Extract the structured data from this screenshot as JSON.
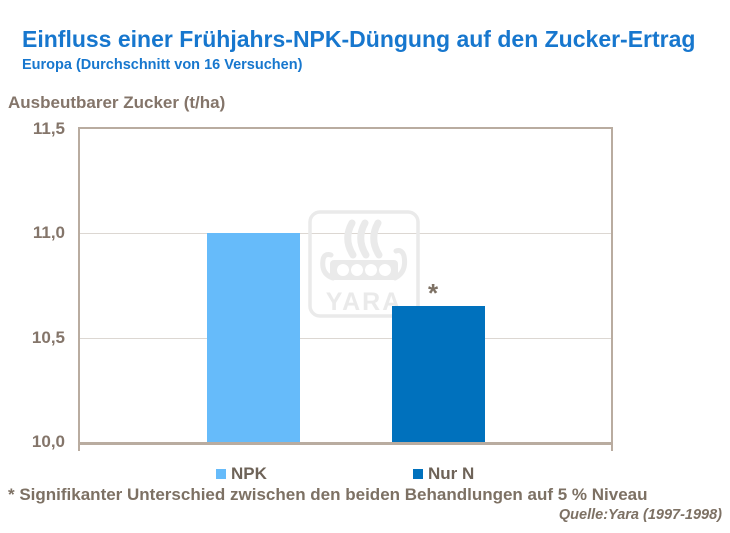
{
  "header": {
    "title": "Einfluss einer Frühjahrs-NPK-Düngung auf den Zucker-Ertrag",
    "subtitle": "Europa (Durchschnitt von 16 Versuchen)"
  },
  "chart_data": {
    "type": "bar",
    "title": "Einfluss einer Frühjahrs-NPK-Düngung auf den Zucker-Ertrag",
    "subtitle": "Europa (Durchschnitt von 16 Versuchen)",
    "ylabel": "Ausbeutbarer Zucker (t/ha)",
    "xlabel": "",
    "categories": [
      "NPK",
      "Nur N"
    ],
    "values": [
      11.0,
      10.65
    ],
    "bar_colors": [
      "#66BBFA",
      "#0071BD"
    ],
    "ylim": [
      10.0,
      11.5
    ],
    "yticks": [
      "11,5",
      "11,0",
      "10,5",
      "10,0"
    ],
    "ytick_values": [
      11.5,
      11.0,
      10.5,
      10.0
    ],
    "decimal_separator": ",",
    "grid": true,
    "legend_position": "bottom",
    "annotation": {
      "text": "*",
      "target_category": "Nur N"
    }
  },
  "legend": {
    "items": [
      {
        "label": "NPK",
        "color": "#66BBFA"
      },
      {
        "label": "Nur N",
        "color": "#0071BD"
      }
    ]
  },
  "footnote": "* Signifikanter Unterschied zwischen den beiden Behandlungen auf 5 % Niveau",
  "source": "Quelle:Yara (1997-1998)",
  "watermark": {
    "text": "YARA"
  },
  "colors": {
    "title_blue": "#1777CE",
    "axis_text_brown": "#84756A",
    "legend_text_brown": "#6E6358",
    "footer_text_brown": "#7D7164",
    "plot_border_tan": "#B9ACA0",
    "gridline_gray": "#DCD7D2",
    "watermark_gray": "#EAEAEA",
    "background": "#FFFFFF"
  }
}
